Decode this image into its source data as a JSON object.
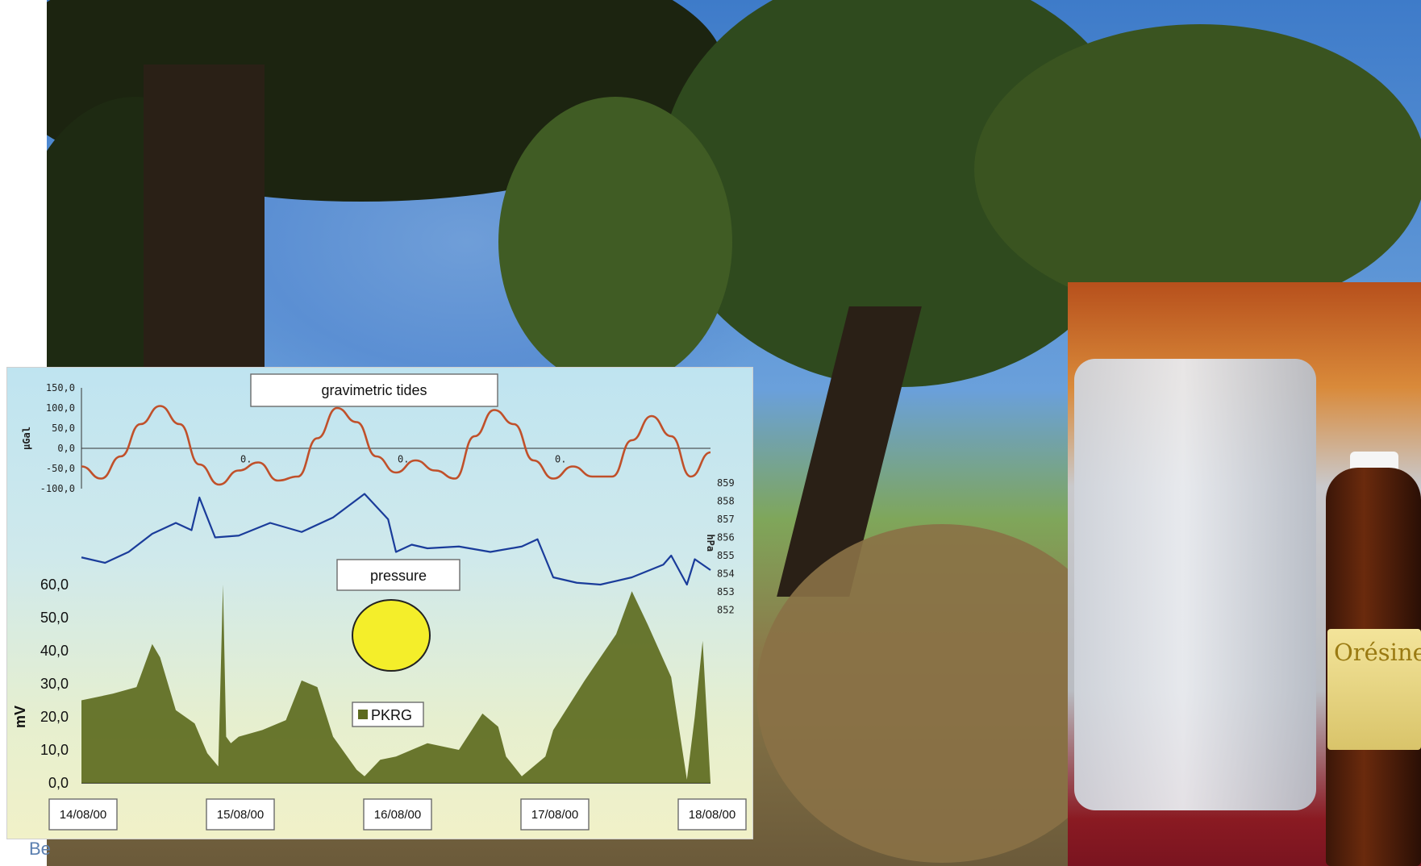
{
  "chart_data": {
    "type": "line",
    "title": "gravimetric tides",
    "annotations": [
      "pressure"
    ],
    "x_tick_labels": [
      "14/08/00",
      "15/08/00",
      "16/08/00",
      "17/08/00",
      "18/08/00"
    ],
    "axes": {
      "tides": {
        "ylabel": "µGal",
        "ticks": [
          "150,0",
          "100,0",
          "50,0",
          "0,0",
          "-50,0",
          "-100,0"
        ],
        "inline_labels": [
          "0.",
          "0.",
          "0."
        ]
      },
      "pressure": {
        "ylabel": "hPa",
        "ticks": [
          "859",
          "858",
          "857",
          "856",
          "855",
          "854",
          "853",
          "852"
        ]
      },
      "pkrg": {
        "ylabel": "mV",
        "ticks": [
          "60,0",
          "50,0",
          "40,0",
          "30,0",
          "20,0",
          "10,0",
          "0,0"
        ],
        "ylim": [
          0,
          60
        ]
      }
    },
    "series": [
      {
        "name": "gravimetric tides",
        "color": "#c0502a",
        "x": [
          0,
          0.125,
          0.25,
          0.375,
          0.5,
          0.625,
          0.75,
          0.875,
          1,
          1.125,
          1.25,
          1.375,
          1.5,
          1.625,
          1.75,
          1.875,
          2,
          2.125,
          2.25,
          2.375,
          2.5,
          2.625,
          2.75,
          2.875,
          3,
          3.125,
          3.25,
          3.375,
          3.5,
          3.625,
          3.75,
          3.875,
          4
        ],
        "values": [
          -45,
          -75,
          -20,
          60,
          105,
          60,
          -40,
          -90,
          -55,
          -35,
          -80,
          -70,
          25,
          100,
          65,
          -20,
          -60,
          -30,
          -55,
          -75,
          30,
          95,
          60,
          -30,
          -75,
          -45,
          -70,
          -70,
          20,
          80,
          30,
          -70,
          -10
        ]
      },
      {
        "name": "pressure",
        "color": "#1a3c9a",
        "x": [
          0,
          0.15,
          0.3,
          0.45,
          0.6,
          0.7,
          0.75,
          0.85,
          1,
          1.2,
          1.4,
          1.6,
          1.8,
          1.95,
          2,
          2.1,
          2.2,
          2.4,
          2.6,
          2.8,
          2.9,
          3,
          3.15,
          3.3,
          3.5,
          3.7,
          3.75,
          3.85,
          3.9,
          4
        ],
        "values": [
          854.9,
          854.6,
          855.2,
          856.2,
          856.8,
          856.4,
          858.2,
          856.0,
          856.1,
          856.8,
          856.3,
          857.1,
          858.4,
          857.0,
          855.2,
          855.6,
          855.4,
          855.5,
          855.2,
          855.5,
          855.9,
          853.8,
          853.5,
          853.4,
          853.8,
          854.5,
          855.0,
          853.4,
          854.8,
          854.2
        ]
      },
      {
        "name": "PKRG",
        "color": "#5d6b1f",
        "x": [
          0,
          0.2,
          0.35,
          0.45,
          0.5,
          0.6,
          0.72,
          0.8,
          0.87,
          0.9,
          0.92,
          0.95,
          1,
          1.15,
          1.3,
          1.4,
          1.5,
          1.6,
          1.75,
          1.8,
          1.9,
          2,
          2.2,
          2.4,
          2.55,
          2.65,
          2.7,
          2.8,
          2.95,
          3,
          3.2,
          3.4,
          3.5,
          3.6,
          3.75,
          3.85,
          3.9,
          3.95,
          4
        ],
        "values": [
          25,
          27,
          29,
          42,
          38,
          22,
          18,
          9,
          5,
          60,
          14,
          12,
          14,
          16,
          19,
          31,
          29,
          14,
          4,
          2,
          7,
          8,
          12,
          10,
          21,
          17,
          8,
          2,
          8,
          16,
          31,
          45,
          58,
          48,
          32,
          1,
          20,
          43,
          0
        ]
      }
    ],
    "legend": [
      "PKRG"
    ]
  },
  "caption_fragment": "Be"
}
